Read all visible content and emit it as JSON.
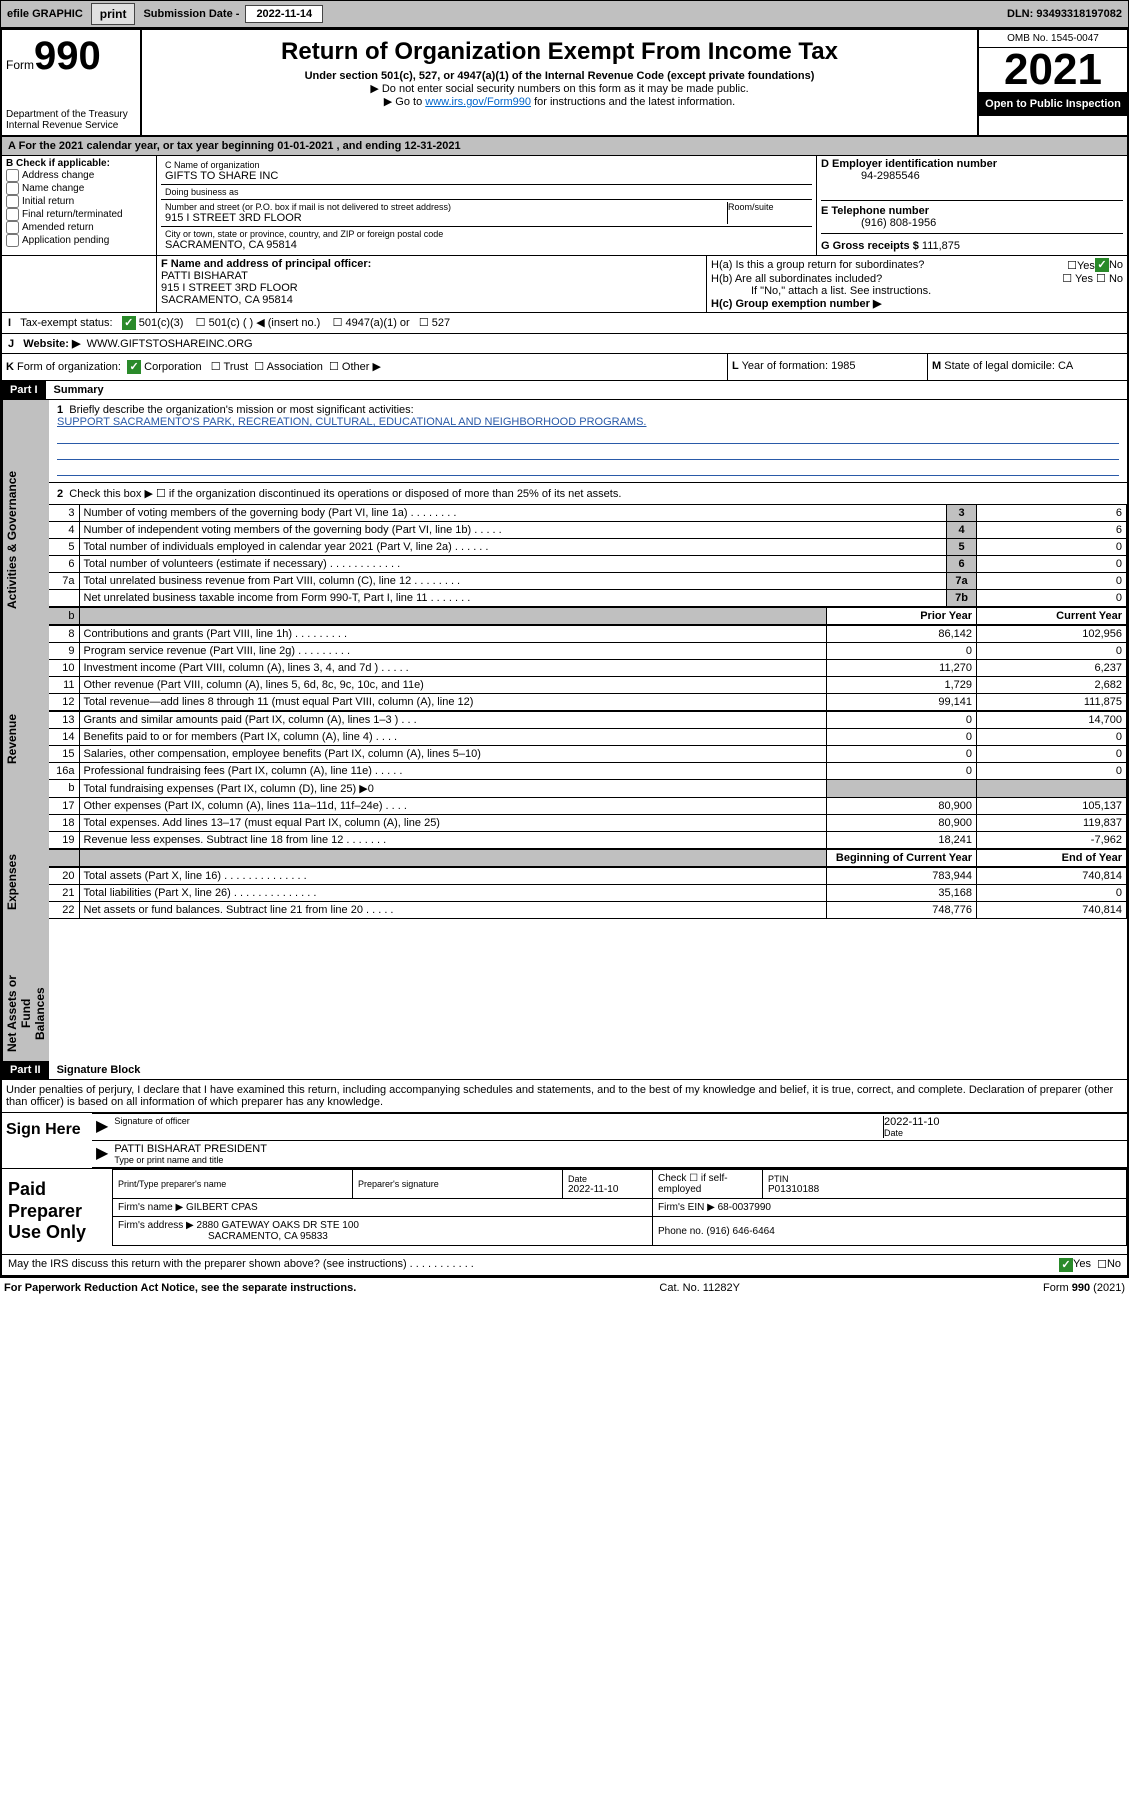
{
  "topbar": {
    "efile": "efile GRAPHIC",
    "print": "print",
    "subdate_label": "Submission Date - ",
    "subdate": "2022-11-14",
    "dln_label": "DLN: ",
    "dln": "93493318197082"
  },
  "header": {
    "form_prefix": "Form",
    "form_number": "990",
    "dept": "Department of the Treasury\nInternal Revenue Service",
    "title": "Return of Organization Exempt From Income Tax",
    "subtitle1": "Under section 501(c), 527, or 4947(a)(1) of the Internal Revenue Code (except private foundations)",
    "subtitle2": "Do not enter social security numbers on this form as it may be made public.",
    "subtitle3_a": "Go to ",
    "subtitle3_link": "www.irs.gov/Form990",
    "subtitle3_b": " for instructions and the latest information.",
    "omb": "OMB No. 1545-0047",
    "year": "2021",
    "inspection": "Open to Public Inspection"
  },
  "line_a": "For the 2021 calendar year, or tax year beginning 01-01-2021    , and ending 12-31-2021",
  "section_b": {
    "label": "B Check if applicable:",
    "opts": [
      "Address change",
      "Name change",
      "Initial return",
      "Final return/terminated",
      "Amended return",
      "Application pending"
    ]
  },
  "section_c": {
    "name_label": "C Name of organization",
    "name": "GIFTS TO SHARE INC",
    "dba_label": "Doing business as",
    "dba": "",
    "street_label": "Number and street (or P.O. box if mail is not delivered to street address)",
    "room_label": "Room/suite",
    "street": "915 I STREET 3RD FLOOR",
    "city_label": "City or town, state or province, country, and ZIP or foreign postal code",
    "city": "SACRAMENTO, CA  95814"
  },
  "section_d": {
    "label": "D Employer identification number",
    "value": "94-2985546"
  },
  "section_e": {
    "label": "E Telephone number",
    "value": "(916) 808-1956"
  },
  "section_g": {
    "label": "G Gross receipts $ ",
    "value": "111,875"
  },
  "section_f": {
    "label": "F  Name and address of principal officer:",
    "name": "PATTI BISHARAT",
    "street": "915 I STREET 3RD FLOOR",
    "city": "SACRAMENTO, CA  95814"
  },
  "section_h": {
    "ha": "H(a)  Is this a group return for subordinates?",
    "hb": "H(b)  Are all subordinates included?",
    "hb_note": "If \"No,\" attach a list. See instructions.",
    "hc": "H(c)  Group exemption number ▶",
    "yes": "Yes",
    "no": "No"
  },
  "line_i": {
    "label": "I",
    "text": "Tax-exempt status:",
    "o1": "501(c)(3)",
    "o2": "501(c) (  ) ◀ (insert no.)",
    "o3": "4947(a)(1) or",
    "o4": "527"
  },
  "line_j": {
    "label": "J",
    "text": "Website: ▶",
    "url": "WWW.GIFTSTOSHAREINC.ORG"
  },
  "line_k": {
    "label": "K",
    "text": "Form of organization:",
    "o1": "Corporation",
    "o2": "Trust",
    "o3": "Association",
    "o4": "Other ▶"
  },
  "line_l": {
    "label": "L",
    "text": "Year of formation: 1985"
  },
  "line_m": {
    "label": "M",
    "text": "State of legal domicile: CA"
  },
  "parts": {
    "p1": "Part I",
    "p1_title": "Summary",
    "p2": "Part II",
    "p2_title": "Signature Block"
  },
  "p1": {
    "q1_label": "1",
    "q1": "Briefly describe the organization's mission or most significant activities:",
    "q1_ans": "SUPPORT SACRAMENTO'S PARK, RECREATION, CULTURAL, EDUCATIONAL AND NEIGHBORHOOD PROGRAMS.",
    "q2_label": "2",
    "q2": "Check this box ▶ ☐  if the organization discontinued its operations or disposed of more than 25% of its net assets.",
    "rows_gov": [
      {
        "n": "3",
        "d": "Number of voting members of the governing body (Part VI, line 1a)  .    .    .    .    .    .    .    .",
        "b": "3",
        "v": "6"
      },
      {
        "n": "4",
        "d": "Number of independent voting members of the governing body (Part VI, line 1b)   .    .    .    .    .",
        "b": "4",
        "v": "6"
      },
      {
        "n": "5",
        "d": "Total number of individuals employed in calendar year 2021 (Part V, line 2a)   .    .    .    .    .    .",
        "b": "5",
        "v": "0"
      },
      {
        "n": "6",
        "d": "Total number of volunteers (estimate if necessary)   .    .    .    .    .    .    .    .    .    .    .    .",
        "b": "6",
        "v": "0"
      },
      {
        "n": "7a",
        "d": "Total unrelated business revenue from Part VIII, column (C), line 12   .    .    .    .    .    .    .    .",
        "b": "7a",
        "v": "0"
      },
      {
        "n": "",
        "d": "Net unrelated business taxable income from Form 990-T, Part I, line 11   .    .    .    .    .    .    .",
        "b": "7b",
        "v": "0"
      }
    ],
    "hdr_prior": "Prior Year",
    "hdr_current": "Current Year",
    "rows_rev": [
      {
        "n": "8",
        "d": "Contributions and grants (Part VIII, line 1h)  .    .    .    .    .    .    .    .    .",
        "p": "86,142",
        "c": "102,956"
      },
      {
        "n": "9",
        "d": "Program service revenue (Part VIII, line 2g)   .    .    .    .    .    .    .    .    .",
        "p": "0",
        "c": "0"
      },
      {
        "n": "10",
        "d": "Investment income (Part VIII, column (A), lines 3, 4, and 7d )   .    .    .    .    .",
        "p": "11,270",
        "c": "6,237"
      },
      {
        "n": "11",
        "d": "Other revenue (Part VIII, column (A), lines 5, 6d, 8c, 9c, 10c, and 11e)",
        "p": "1,729",
        "c": "2,682"
      },
      {
        "n": "12",
        "d": "Total revenue—add lines 8 through 11 (must equal Part VIII, column (A), line 12)",
        "p": "99,141",
        "c": "111,875"
      }
    ],
    "rows_exp": [
      {
        "n": "13",
        "d": "Grants and similar amounts paid (Part IX, column (A), lines 1–3 )   .    .    .",
        "p": "0",
        "c": "14,700"
      },
      {
        "n": "14",
        "d": "Benefits paid to or for members (Part IX, column (A), line 4)   .    .    .    .",
        "p": "0",
        "c": "0"
      },
      {
        "n": "15",
        "d": "Salaries, other compensation, employee benefits (Part IX, column (A), lines 5–10)",
        "p": "0",
        "c": "0"
      },
      {
        "n": "16a",
        "d": "Professional fundraising fees (Part IX, column (A), line 11e)   .    .    .    .    .",
        "p": "0",
        "c": "0"
      },
      {
        "n": "b",
        "d": "Total fundraising expenses (Part IX, column (D), line 25) ▶0",
        "p": "",
        "c": "",
        "gray": true
      },
      {
        "n": "17",
        "d": "Other expenses (Part IX, column (A), lines 11a–11d, 11f–24e)   .    .    .    .",
        "p": "80,900",
        "c": "105,137"
      },
      {
        "n": "18",
        "d": "Total expenses. Add lines 13–17 (must equal Part IX, column (A), line 25)",
        "p": "80,900",
        "c": "119,837"
      },
      {
        "n": "19",
        "d": "Revenue less expenses. Subtract line 18 from line 12   .    .    .    .    .    .    .",
        "p": "18,241",
        "c": "-7,962"
      }
    ],
    "hdr_begin": "Beginning of Current Year",
    "hdr_end": "End of Year",
    "rows_net": [
      {
        "n": "20",
        "d": "Total assets (Part X, line 16)   .    .    .    .    .    .    .    .    .    .    .    .    .    .",
        "p": "783,944",
        "c": "740,814"
      },
      {
        "n": "21",
        "d": "Total liabilities (Part X, line 26)  .    .    .    .    .    .    .    .    .    .    .    .    .    .",
        "p": "35,168",
        "c": "0"
      },
      {
        "n": "22",
        "d": "Net assets or fund balances. Subtract line 21 from line 20   .    .    .    .    .",
        "p": "748,776",
        "c": "740,814"
      }
    ]
  },
  "vert": {
    "gov": "Activities & Governance",
    "rev": "Revenue",
    "exp": "Expenses",
    "net": "Net Assets or\nFund Balances"
  },
  "sig": {
    "perjury": "Under penalties of perjury, I declare that I have examined this return, including accompanying schedules and statements, and to the best of my knowledge and belief, it is true, correct, and complete. Declaration of preparer (other than officer) is based on all information of which preparer has any knowledge.",
    "sign_here": "Sign Here",
    "sig_officer": "Signature of officer",
    "date": "Date",
    "date_val": "2022-11-10",
    "name_title": "PATTI BISHARAT  PRESIDENT",
    "name_title_label": "Type or print name and title"
  },
  "prep": {
    "label": "Paid Preparer Use Only",
    "h1": "Print/Type preparer's name",
    "h2": "Preparer's signature",
    "h3": "Date",
    "h3v": "2022-11-10",
    "h4a": "Check",
    "h4b": "if self-employed",
    "h5": "PTIN",
    "h5v": "P01310188",
    "firm_name_l": "Firm's name    ▶",
    "firm_name": "GILBERT CPAS",
    "firm_ein_l": "Firm's EIN ▶",
    "firm_ein": "68-0037990",
    "firm_addr_l": "Firm's address ▶",
    "firm_addr1": "2880 GATEWAY OAKS DR STE 100",
    "firm_addr2": "SACRAMENTO, CA  95833",
    "phone_l": "Phone no.",
    "phone": "(916) 646-6464",
    "discuss": "May the IRS discuss this return with the preparer shown above? (see instructions)   .    .    .    .    .    .    .    .    .    .    .",
    "yes": "Yes",
    "no": "No"
  },
  "footer": {
    "left": "For Paperwork Reduction Act Notice, see the separate instructions.",
    "center": "Cat. No. 11282Y",
    "right": "Form 990 (2021)"
  },
  "colors": {
    "link": "#0066cc",
    "gray": "#c0c0c0",
    "green": "#2a8a2a",
    "blue_line": "#2a5aa8"
  }
}
